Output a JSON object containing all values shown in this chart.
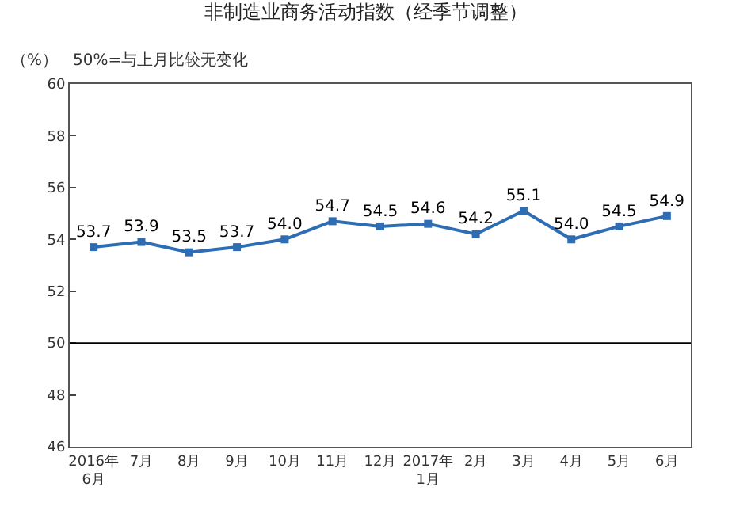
{
  "chart_data": {
    "type": "line",
    "title": "非制造业商务活动指数（经季节调整）",
    "ylabel": "（%）",
    "annotations": [
      "50%=与上月比较无变化"
    ],
    "categories": [
      "2016年\n6月",
      "7月",
      "8月",
      "9月",
      "10月",
      "11月",
      "12月",
      "2017年\n1月",
      "2月",
      "3月",
      "4月",
      "5月",
      "6月"
    ],
    "series": [
      {
        "color": "#2e6db4",
        "values": [
          53.7,
          53.9,
          53.5,
          53.7,
          54.0,
          54.7,
          54.5,
          54.6,
          54.2,
          55.1,
          54.0,
          54.5,
          54.9
        ]
      }
    ],
    "value_labels": [
      "53.7",
      "53.9",
      "53.5",
      "53.7",
      "54.0",
      "54.7",
      "54.5",
      "54.6",
      "54.2",
      "55.1",
      "54.0",
      "54.5",
      "54.9"
    ],
    "ylim": [
      46,
      60
    ],
    "yticks": [
      46,
      48,
      50,
      52,
      54,
      56,
      58,
      60
    ],
    "ref_lines": [
      {
        "axis": "y",
        "value": 50,
        "color": "#000000"
      }
    ],
    "marker": "square",
    "line_style": "solid"
  }
}
